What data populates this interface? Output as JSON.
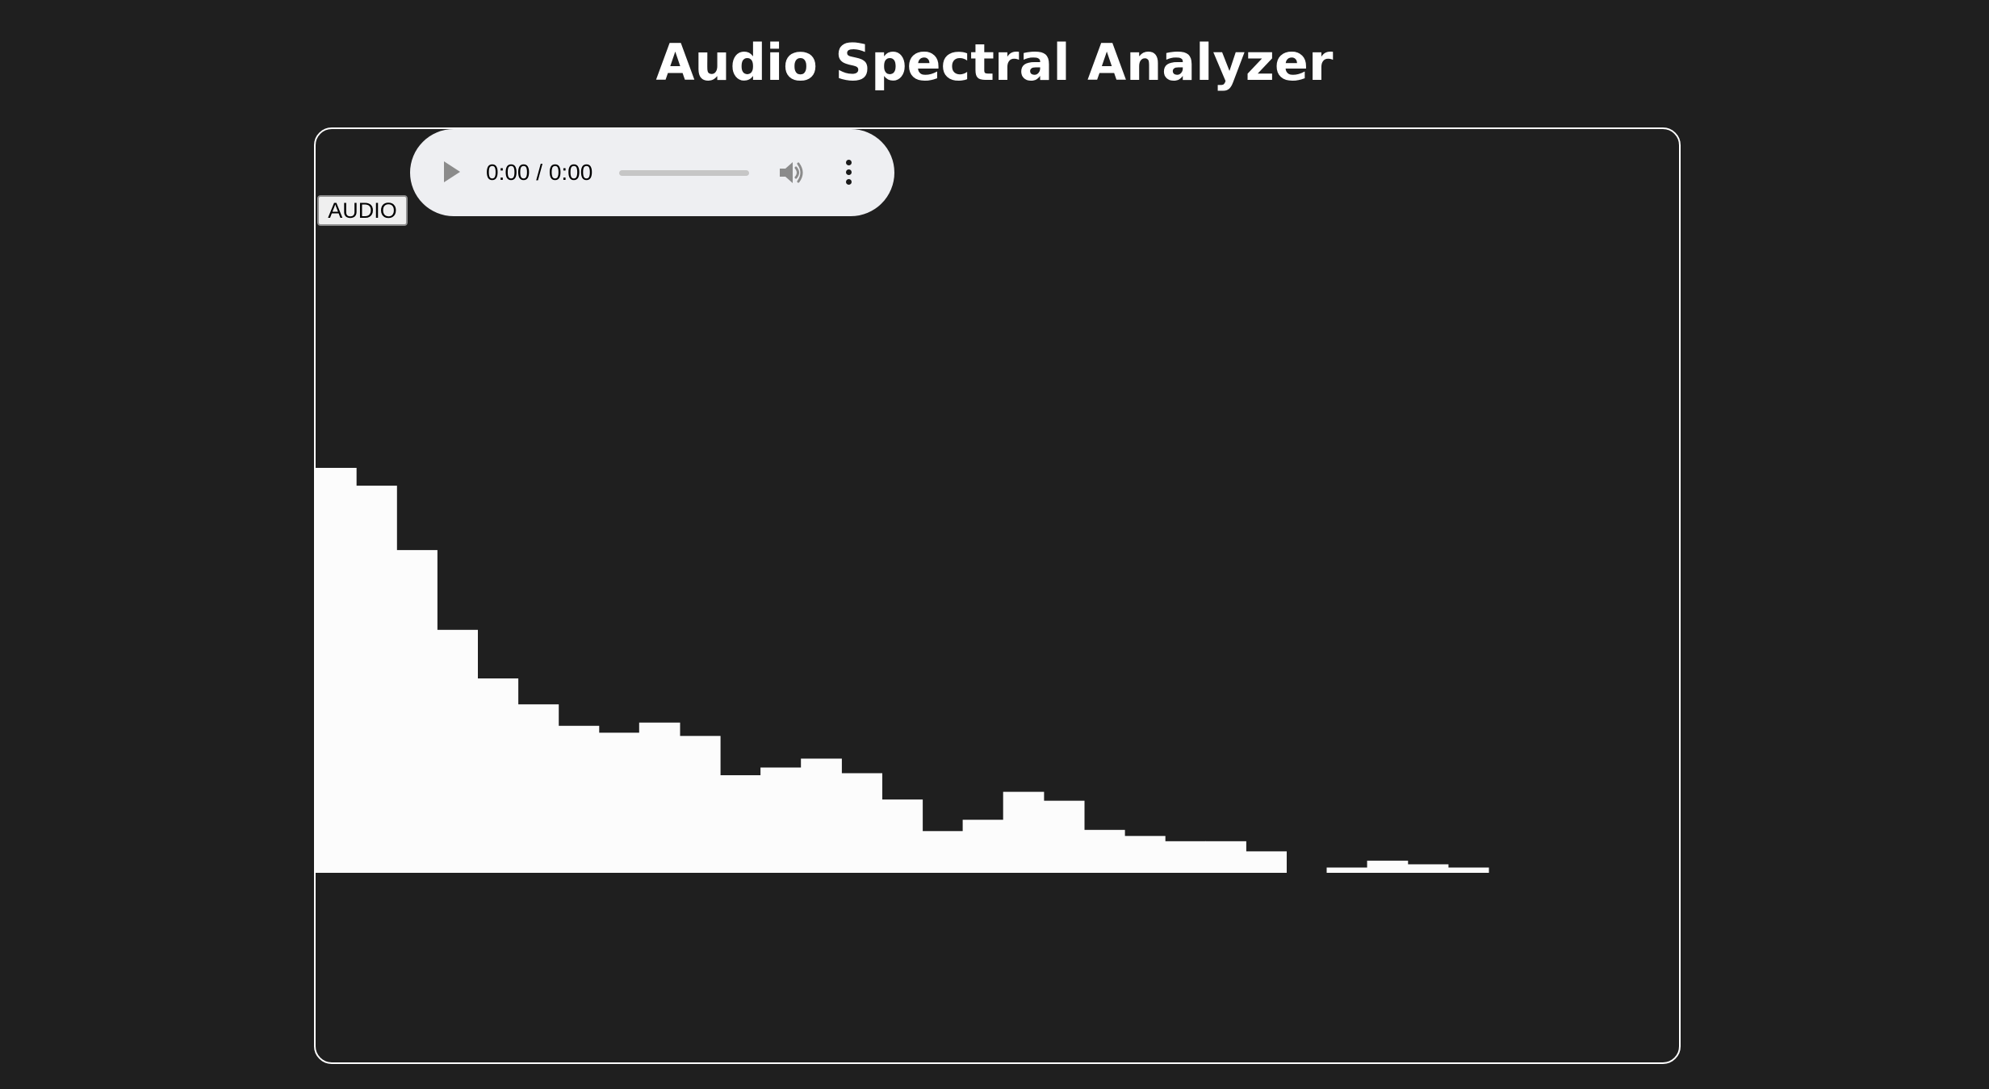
{
  "page": {
    "title": "Audio Spectral Analyzer"
  },
  "controls": {
    "audio_button_label": "AUDIO"
  },
  "player": {
    "time_text": "0:00 / 0:00",
    "progress": 0,
    "icons": [
      "play-icon",
      "volume-icon",
      "more-options-icon"
    ]
  },
  "colors": {
    "background": "#1f1f1f",
    "bars": "#fcfcfc",
    "border": "#ffffff",
    "player_bg": "#eeeff2"
  },
  "chart_data": {
    "type": "bar",
    "ylim": [
      0,
      100
    ],
    "values": [
      100,
      95.6,
      79.7,
      60,
      48,
      41.6,
      36.3,
      34.6,
      37.1,
      33.8,
      24.1,
      26,
      28.2,
      24.6,
      18.1,
      10.3,
      13.1,
      20,
      17.8,
      10.6,
      9.1,
      7.8,
      7.8,
      5.3,
      0,
      1.3,
      3,
      2.1,
      1.3
    ]
  }
}
